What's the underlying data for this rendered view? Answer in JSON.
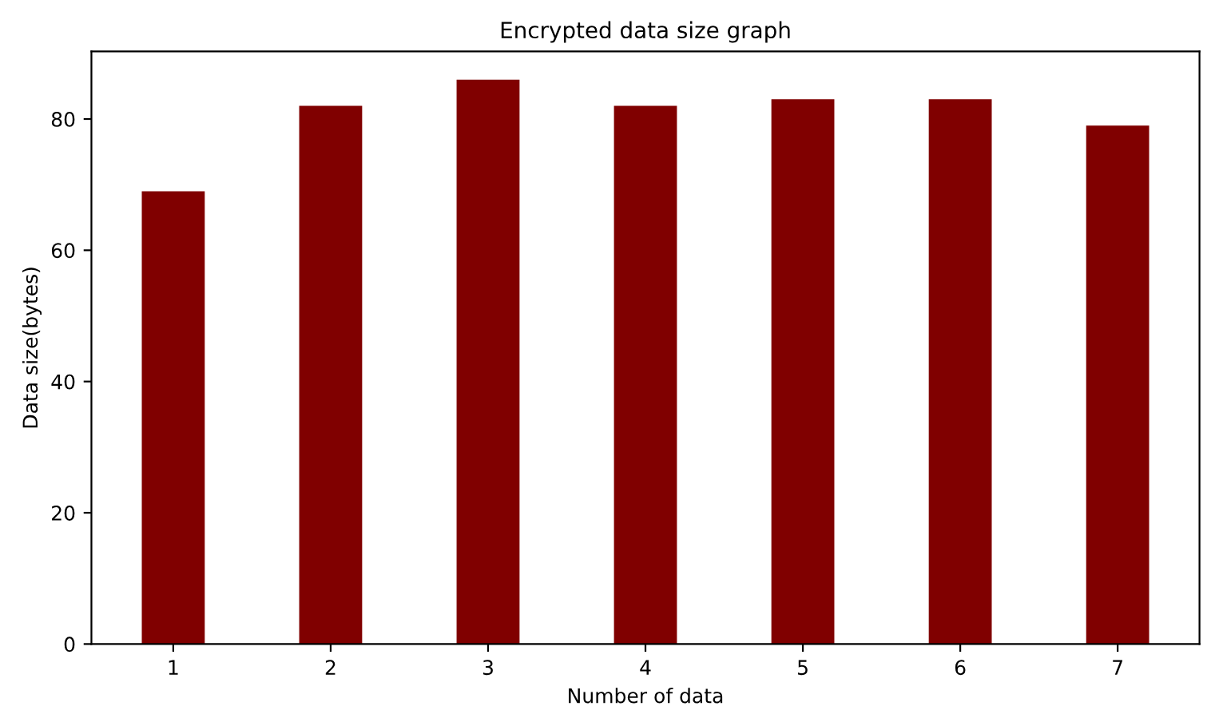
{
  "chart_data": {
    "type": "bar",
    "title": "Encrypted data size graph",
    "xlabel": "Number of data",
    "ylabel": "Data size(bytes)",
    "categories": [
      "1",
      "2",
      "3",
      "4",
      "5",
      "6",
      "7"
    ],
    "values": [
      69,
      82,
      86,
      82,
      83,
      83,
      79
    ],
    "color": "#800000",
    "ylim": [
      0,
      90.3
    ],
    "yticks": [
      0,
      20,
      40,
      60,
      80
    ],
    "grid": false,
    "legend": false
  }
}
